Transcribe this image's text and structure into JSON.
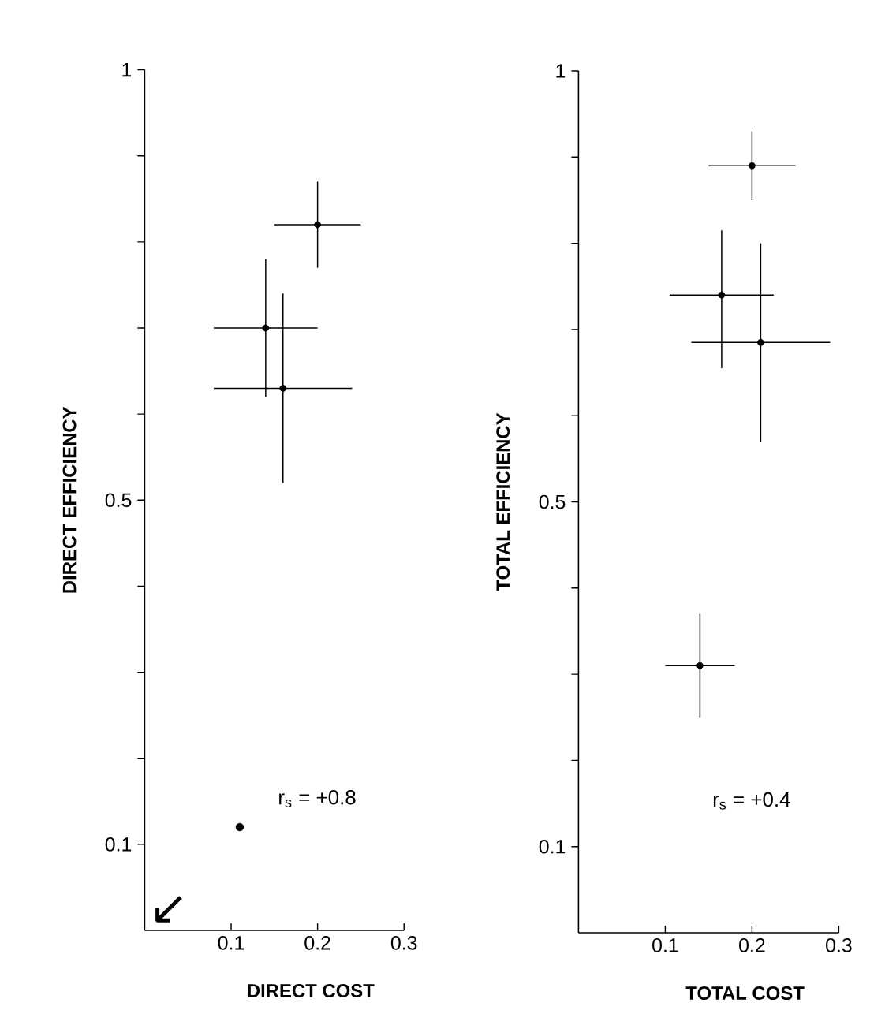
{
  "chart_data": [
    {
      "type": "scatter",
      "xlabel": "DIRECT COST",
      "ylabel": "DIRECT EFFICIENCY",
      "xlim": [
        0,
        0.3
      ],
      "ylim": [
        0,
        1
      ],
      "xticks": [
        0.1,
        0.2,
        0.3
      ],
      "yticks": [
        0.1,
        {
          "value": 0.2,
          "label": null
        },
        {
          "value": 0.3,
          "label": null
        },
        {
          "value": 0.4,
          "label": null
        },
        0.5,
        {
          "value": 0.6,
          "label": null
        },
        {
          "value": 0.7,
          "label": null
        },
        {
          "value": 0.8,
          "label": null
        },
        {
          "value": 0.9,
          "label": null
        },
        1
      ],
      "series": [
        {
          "color": "#000000",
          "x": [
            0.14,
            0.16,
            0.2
          ],
          "values": [
            0.7,
            0.63,
            0.82
          ],
          "xerrors": [
            [
              0.08,
              0.2
            ],
            [
              0.08,
              0.24
            ],
            [
              0.15,
              0.25
            ]
          ],
          "errors": [
            [
              0.62,
              0.78
            ],
            [
              0.52,
              0.74
            ],
            [
              0.77,
              0.87
            ]
          ]
        },
        {
          "color": "#000000",
          "marker": "circle",
          "x": [
            0.11
          ],
          "values": [
            0.12
          ]
        }
      ],
      "annotations": [
        "r$_{s}$ = +0.8",
        "↙"
      ]
    },
    {
      "type": "scatter",
      "xlabel": "TOTAL COST",
      "ylabel": "TOTAL EFFICIENCY",
      "xlim": [
        0,
        0.3
      ],
      "ylim": [
        0,
        1
      ],
      "xticks": [
        0.1,
        0.2,
        0.3
      ],
      "yticks": [
        0.1,
        {
          "value": 0.2,
          "label": null
        },
        {
          "value": 0.3,
          "label": null
        },
        {
          "value": 0.4,
          "label": null
        },
        0.5,
        {
          "value": 0.6,
          "label": null
        },
        {
          "value": 0.7,
          "label": null
        },
        {
          "value": 0.8,
          "label": null
        },
        {
          "value": 0.9,
          "label": null
        },
        1
      ],
      "series": [
        {
          "color": "#000000",
          "x": [
            0.14,
            0.165,
            0.2,
            0.21
          ],
          "values": [
            0.31,
            0.74,
            0.89,
            0.685
          ],
          "xerrors": [
            [
              0.1,
              0.18
            ],
            [
              0.105,
              0.225
            ],
            [
              0.15,
              0.25
            ],
            [
              0.13,
              0.29
            ]
          ],
          "errors": [
            [
              0.25,
              0.37
            ],
            [
              0.655,
              0.815
            ],
            [
              0.85,
              0.93
            ],
            [
              0.57,
              0.8
            ]
          ]
        }
      ],
      "annotations": [
        "r$_{s}$ = +0.4"
      ]
    }
  ]
}
